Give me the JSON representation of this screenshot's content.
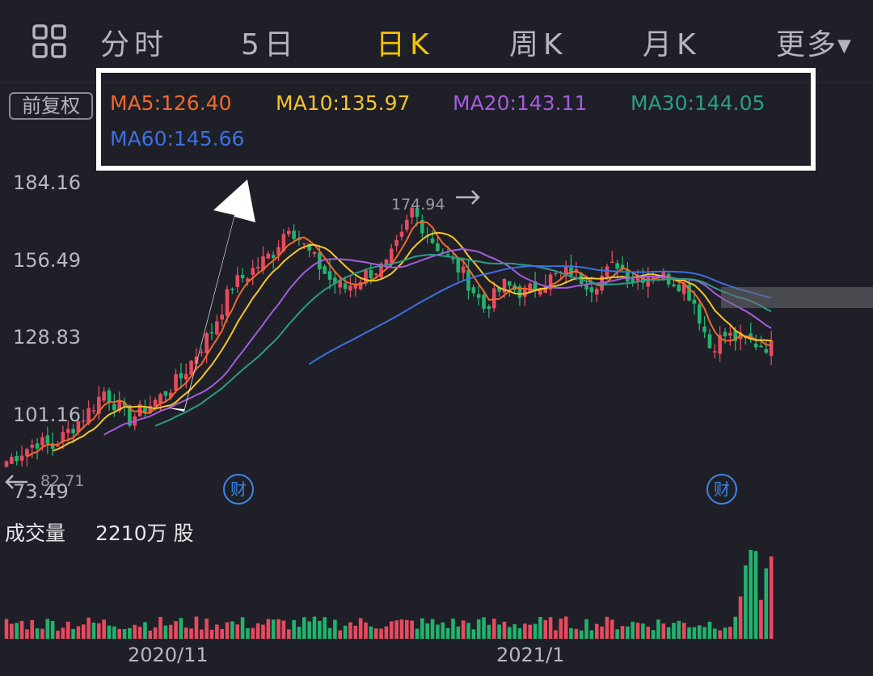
{
  "tabs": {
    "items": [
      {
        "label": "分时",
        "active": false
      },
      {
        "label": "5日",
        "active": false
      },
      {
        "label": "日K",
        "active": true
      },
      {
        "label": "周K",
        "active": false
      },
      {
        "label": "月K",
        "active": false
      }
    ],
    "more_label": "更多",
    "more_arrow": "▼"
  },
  "adjust_button": "前复权",
  "ma_legend": [
    {
      "name": "MA5",
      "text": "MA5:126.40",
      "color": "#f2692c"
    },
    {
      "name": "MA10",
      "text": "MA10:135.97",
      "color": "#f5c52a"
    },
    {
      "name": "MA20",
      "text": "MA20:143.11",
      "color": "#a55be0"
    },
    {
      "name": "MA30",
      "text": "MA30:144.05",
      "color": "#2a9d88"
    },
    {
      "name": "MA60",
      "text": "MA60:145.66",
      "color": "#3d70e0"
    }
  ],
  "colors": {
    "up": "#e84a5f",
    "down": "#21b36e",
    "highlight": "#ffffff"
  },
  "chart_data": {
    "type": "candlestick",
    "y_ticks": [
      "184.16",
      "156.49",
      "128.83",
      "101.16",
      "73.49"
    ],
    "ylim": [
      73.49,
      184.16
    ],
    "high_label": "174.94",
    "low_label": "82.71",
    "x_ticks": [
      "2020/11",
      "2021/1"
    ],
    "finance_marker": "财",
    "volume_label": "成交量",
    "volume_value": "2210万 股",
    "ma_latest": {
      "MA5": 126.4,
      "MA10": 135.97,
      "MA20": 143.11,
      "MA30": 144.05,
      "MA60": 145.66
    }
  }
}
